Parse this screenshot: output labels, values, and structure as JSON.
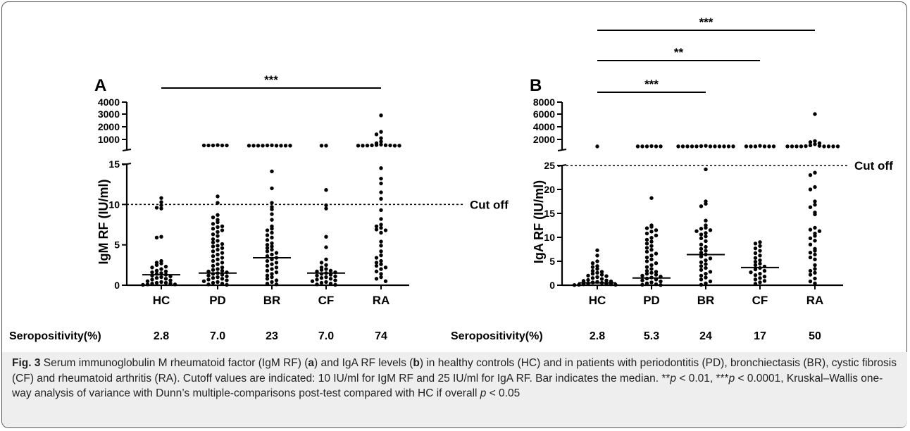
{
  "chart_data": [
    {
      "type": "scatter",
      "panel": "A",
      "ylabel": "IgM RF (IU/ml)",
      "categories": [
        "HC",
        "PD",
        "BR",
        "CF",
        "RA"
      ],
      "y_lower_ticks": [
        "0",
        "5",
        "10",
        "15"
      ],
      "y_upper_ticks": [
        "1000",
        "2000",
        "3000",
        "4000"
      ],
      "y_lower_range": [
        0,
        15
      ],
      "y_upper_range": [
        0,
        4000
      ],
      "cutoff": {
        "value": 10,
        "label": "Cut off"
      },
      "medians": [
        1.3,
        1.5,
        3.4,
        1.5,
        null
      ],
      "points": [
        [
          10.8,
          10.3,
          9.9,
          9.6,
          9.5,
          6,
          5.9,
          3,
          2.8,
          2.7,
          2.5,
          2.3,
          2.2,
          2,
          1.8,
          1.7,
          1.6,
          1.5,
          1.4,
          1.3,
          1.2,
          1.1,
          1,
          0.9,
          0.8,
          0.7,
          0.6,
          0.5,
          0.4,
          0.3,
          0.3,
          0.2,
          0.2,
          0.1,
          0.1,
          0.05
        ],
        [
          470,
          440,
          440,
          440,
          440,
          440,
          11,
          10.2,
          8.7,
          8.4,
          8.1,
          7.8,
          7.6,
          7.3,
          7.2,
          7,
          6.8,
          6.6,
          6.3,
          6.1,
          5.7,
          5.5,
          5.3,
          5.1,
          4.9,
          4.8,
          4.6,
          4.4,
          4.2,
          4,
          3.8,
          3.6,
          3.4,
          3.2,
          3,
          2.8,
          2.6,
          2.4,
          2.2,
          2,
          1.9,
          1.8,
          1.7,
          1.6,
          1.5,
          1.4,
          1.3,
          1.2,
          1.1,
          1,
          0.9,
          0.8,
          0.7,
          0.6,
          0.5,
          0.4,
          0.3,
          0.2,
          0.1,
          0.05
        ],
        [
          450,
          440,
          420,
          420,
          420,
          420,
          420,
          420,
          420,
          420,
          14.1,
          12,
          10.2,
          9.7,
          9.4,
          8.8,
          8.1,
          7.3,
          7,
          6.8,
          6.5,
          6.2,
          5.9,
          5.6,
          5.2,
          5,
          4.8,
          4.6,
          4.4,
          4.2,
          4,
          3.8,
          3.6,
          3.4,
          3.2,
          3,
          2.8,
          2.6,
          2.4,
          2.2,
          2,
          1.8,
          1.6,
          1.4,
          1.2,
          1,
          0.8,
          0.6,
          0.4,
          0.2,
          0.1
        ],
        [
          420,
          420,
          11.8,
          9.9,
          9.5,
          6,
          4.7,
          3.2,
          2.8,
          2.5,
          2.2,
          2,
          1.9,
          1.8,
          1.7,
          1.6,
          1.5,
          1.4,
          1.3,
          1.2,
          1.1,
          1,
          0.9,
          0.8,
          0.7,
          0.6,
          0.5,
          0.4,
          0.3,
          0.2,
          0.1,
          0.05
        ],
        [
          2900,
          1600,
          1400,
          1100,
          800,
          650,
          520,
          480,
          460,
          450,
          440,
          430,
          420,
          420,
          420,
          420,
          14.5,
          13.2,
          12.6,
          11.5,
          10.7,
          9.3,
          8.2,
          7.5,
          7.3,
          7.1,
          6.9,
          6.8,
          6.5,
          5.4,
          4.9,
          4.2,
          3.7,
          3.4,
          3,
          2.8,
          2.6,
          2.4,
          2.2,
          2,
          1.7,
          1.4,
          1,
          0.8,
          0.5
        ]
      ],
      "significance": [
        {
          "from": "HC",
          "to": "RA",
          "label": "***"
        }
      ],
      "seropositivity_label": "Seropositivity(%)",
      "seropositivity": [
        "2.8",
        "7.0",
        "23",
        "7.0",
        "74"
      ]
    },
    {
      "type": "scatter",
      "panel": "B",
      "ylabel": "IgA RF (IU/ml)",
      "categories": [
        "HC",
        "PD",
        "BR",
        "CF",
        "RA"
      ],
      "y_lower_ticks": [
        "0",
        "5",
        "10",
        "15",
        "20",
        "25"
      ],
      "y_upper_ticks": [
        "2000",
        "4000",
        "6000",
        "8000"
      ],
      "y_lower_range": [
        0,
        25
      ],
      "y_upper_range": [
        0,
        8000
      ],
      "cutoff": {
        "value": 25,
        "label": "Cut off"
      },
      "medians": [
        0.5,
        1.5,
        6.4,
        3.7,
        null
      ],
      "points": [
        [
          700,
          7.3,
          6.2,
          5,
          4.6,
          4,
          3.8,
          3.4,
          3,
          2.8,
          2.6,
          2.4,
          2.2,
          2,
          1.9,
          1.7,
          1.5,
          1.3,
          1.1,
          1,
          0.9,
          0.8,
          0.7,
          0.6,
          0.5,
          0.4,
          0.3,
          0.2,
          0.2,
          0.1,
          0.1,
          0.05
        ],
        [
          750,
          700,
          700,
          700,
          700,
          700,
          18.2,
          12.5,
          12.2,
          11.9,
          11.5,
          11.2,
          10.8,
          10.4,
          9.9,
          9.5,
          9.1,
          8.7,
          8.2,
          7.8,
          7.4,
          7,
          6.6,
          6.2,
          5.8,
          5.4,
          5,
          4.6,
          4.2,
          3.8,
          3.4,
          3,
          2.8,
          2.6,
          2.4,
          2.2,
          2,
          1.8,
          1.6,
          1.4,
          1.2,
          1,
          0.8,
          0.6,
          0.4,
          0.2,
          0.1,
          0.05
        ],
        [
          800,
          750,
          700,
          700,
          700,
          700,
          700,
          700,
          700,
          700,
          700,
          700,
          700,
          24.2,
          17.5,
          17,
          16.5,
          13.5,
          12.5,
          12,
          11.8,
          11.5,
          11.3,
          10.9,
          10.6,
          10.2,
          9.8,
          9.2,
          8.5,
          8,
          7.6,
          7.2,
          6.8,
          6.4,
          6,
          5.6,
          5.2,
          4.8,
          4.4,
          4,
          3.6,
          3.2,
          2.8,
          2.4,
          2,
          1.6,
          1.2,
          0.8,
          0.4,
          0.1
        ],
        [
          800,
          700,
          700,
          700,
          700,
          700,
          700,
          9,
          8.7,
          8.2,
          7.7,
          7.2,
          6.7,
          6.2,
          5.7,
          5.2,
          4.9,
          4.5,
          4.2,
          3.9,
          3.6,
          3.3,
          3,
          2.7,
          2.4,
          2.1,
          1.8,
          1.5,
          1.2,
          0.9,
          0.6,
          0.3
        ],
        [
          6000,
          1700,
          1500,
          1300,
          1100,
          900,
          800,
          750,
          700,
          700,
          700,
          700,
          700,
          700,
          700,
          700,
          23.5,
          23,
          20.5,
          20,
          17.5,
          16.8,
          16.3,
          15.2,
          14.8,
          12,
          11.6,
          11.3,
          10.8,
          10.3,
          9.8,
          9.3,
          8.5,
          7.6,
          7.2,
          6.8,
          6.4,
          5.8,
          5.4,
          4.2,
          3.4,
          3,
          2.6,
          2.2,
          1.4,
          0.8,
          0.4
        ]
      ],
      "significance": [
        {
          "from": "HC",
          "to": "BR",
          "label": "***"
        },
        {
          "from": "HC",
          "to": "CF",
          "label": "**"
        },
        {
          "from": "HC",
          "to": "RA",
          "label": "***"
        }
      ],
      "seropositivity_label": "Seropositivity(%)",
      "seropositivity": [
        "2.8",
        "5.3",
        "24",
        "17",
        "50"
      ]
    }
  ],
  "caption": {
    "fig_label": "Fig. 3",
    "text_1": " Serum immunoglobulin M rheumatoid factor (IgM RF) (",
    "a": "a",
    "text_2": ") and IgA RF levels (",
    "b": "b",
    "text_3": ") in healthy controls (HC) and in patients with periodontitis (PD), bronchiectasis (BR), cystic fibrosis (CF) and rheumatoid arthritis (RA). Cutoff values are indicated: 10 IU/ml for IgM RF and 25 IU/ml for IgA RF. Bar indicates the median. **",
    "p1": "p",
    "text_4": " < 0.01, ***",
    "p2": "p",
    "text_5": " < 0.0001, Kruskal–Wallis one-way analysis of variance with Dunn’s multiple-comparisons post-test compared with HC if overall ",
    "p3": "p",
    "text_6": " < 0.05"
  }
}
